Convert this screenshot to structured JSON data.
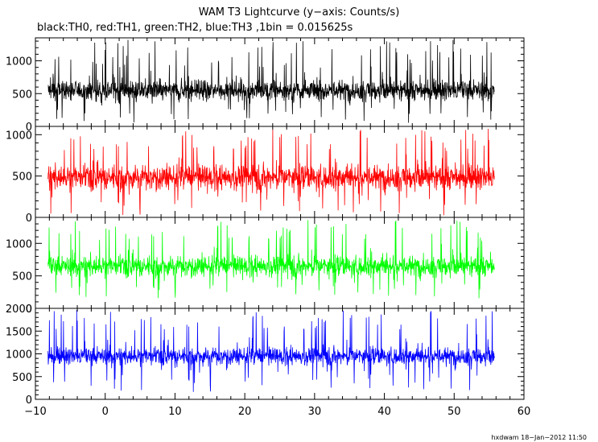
{
  "chart_data": {
    "type": "line",
    "title": "WAM T3 Lightcurve (y−axis: Counts/s)",
    "subtitle": "black:TH0, red:TH1, green:TH2, blue:TH3 ,1bin = 0.015625s",
    "footer": "hxdwam 18−Jan−2012 11:50",
    "x_range": [
      -10,
      60
    ],
    "x_ticks": [
      -10,
      0,
      10,
      20,
      30,
      40,
      50,
      60
    ],
    "x_tick_labels": [
      "−10",
      "0",
      "10",
      "20",
      "30",
      "40",
      "50",
      "60"
    ],
    "data_x_range": [
      -8.2,
      55.8
    ],
    "series": [
      {
        "name": "TH0",
        "color": "#000000",
        "ylim": [
          0,
          1350
        ],
        "y_ticks": [
          0,
          500,
          1000
        ],
        "y_tick_labels": [
          "0",
          "500",
          "1000"
        ],
        "band_core": [
          300,
          800
        ],
        "spike_range": [
          50,
          1330
        ]
      },
      {
        "name": "TH1",
        "color": "#ff0000",
        "ylim": [
          0,
          1100
        ],
        "y_ticks": [
          0,
          500,
          1000
        ],
        "y_tick_labels": [
          "0",
          "500",
          "1000"
        ],
        "band_core": [
          250,
          720
        ],
        "spike_range": [
          20,
          1080
        ]
      },
      {
        "name": "TH2",
        "color": "#00ff00",
        "ylim": [
          0,
          1400
        ],
        "y_ticks": [
          0,
          500,
          1000
        ],
        "y_tick_labels": [
          "0",
          "500",
          "1000"
        ],
        "band_core": [
          400,
          900
        ],
        "spike_range": [
          150,
          1380
        ]
      },
      {
        "name": "TH3",
        "color": "#0000ff",
        "ylim": [
          0,
          2000
        ],
        "y_ticks": [
          0,
          500,
          1000,
          1500,
          2000
        ],
        "y_tick_labels": [
          "0",
          "500",
          "1000",
          "1500",
          "2000"
        ],
        "band_core": [
          650,
          1250
        ],
        "spike_range": [
          150,
          1980
        ]
      }
    ]
  }
}
